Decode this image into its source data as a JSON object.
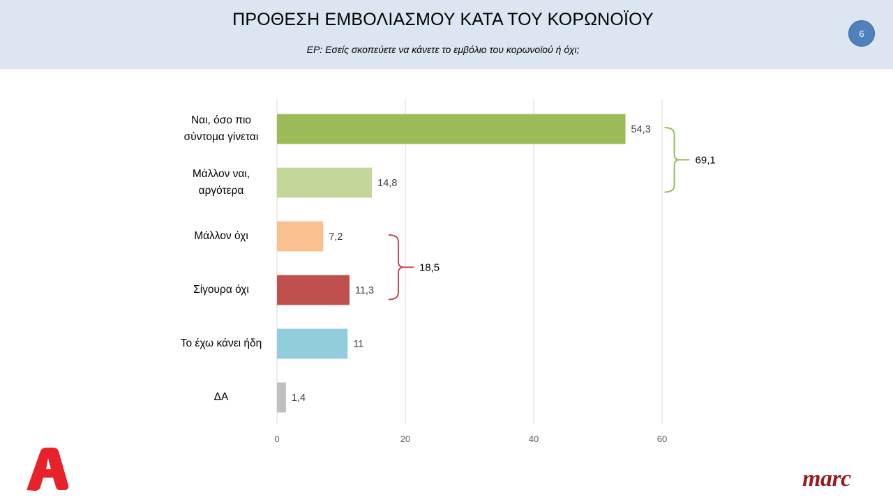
{
  "header": {
    "title": "ΠΡΟΘΕΣΗ ΕΜΒΟΛΙΑΣΜΟΥ ΚΑΤΑ ΤΟΥ ΚΟΡΩΝΟΪΟΥ",
    "subtitle": "ΕΡ:  Εσείς σκοπεύετε να κάνετε το εμβόλιο του κορωνοϊού  ή όχι;",
    "page_number": "6",
    "background_color": "#dce6f2"
  },
  "logos": {
    "brand_logo": "A",
    "brand_logo_color": "#e8222a",
    "pollster_logo": "marc",
    "pollster_logo_color": "#9a1b1f"
  },
  "chart_data": {
    "type": "bar",
    "orientation": "horizontal",
    "title": "",
    "xlabel": "",
    "ylabel": "",
    "xlim": [
      0,
      60
    ],
    "x_ticks": [
      0,
      20,
      40,
      60
    ],
    "x_tick_labels": [
      "0",
      "20",
      "40",
      "60"
    ],
    "grid": true,
    "categories": [
      [
        "Ναι, όσο πιο",
        "σύντομα γίνεται"
      ],
      [
        "Μάλλον ναι,",
        "αργότερα"
      ],
      [
        "Μάλλον όχι"
      ],
      [
        "Σίγουρα όχι"
      ],
      [
        "Το έχω κάνει ήδη"
      ],
      [
        "ΔΑ"
      ]
    ],
    "values": [
      54.3,
      14.8,
      7.2,
      11.3,
      11,
      1.4
    ],
    "value_labels": [
      "54,3",
      "14,8",
      "7,2",
      "11,3",
      "11",
      "1,4"
    ],
    "colors": [
      "#9bbb59",
      "#c4d79b",
      "#fac090",
      "#c0504d",
      "#92cddc",
      "#bfbfbf"
    ],
    "groups": [
      {
        "label": "69,1",
        "value": 69.1,
        "from": 0,
        "to": 1,
        "color": "#9bbb59"
      },
      {
        "label": "18,5",
        "value": 18.5,
        "from": 2,
        "to": 3,
        "color": "#c0504d"
      }
    ]
  }
}
